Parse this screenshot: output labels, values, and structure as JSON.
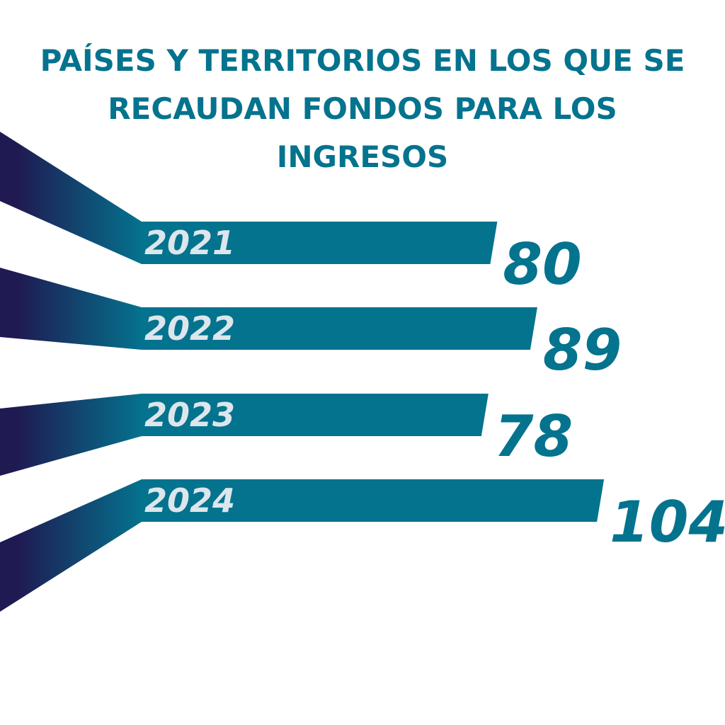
{
  "chart_data": {
    "type": "bar",
    "title_lines": [
      "PAÍSES Y TERRITORIOS EN LOS QUE SE",
      "RECAUDAN FONDOS PARA LOS",
      "INGRESOS"
    ],
    "categories": [
      "2021",
      "2022",
      "2023",
      "2024"
    ],
    "values": [
      80,
      89,
      78,
      104
    ],
    "orientation": "horizontal",
    "xlabel": "",
    "ylabel": "",
    "grid": false,
    "legend": "none"
  },
  "colors": {
    "bar": "#04738e",
    "ribbon_dark": "#1f1a52",
    "title": "#04738e",
    "year_label": "#dce6ec"
  }
}
